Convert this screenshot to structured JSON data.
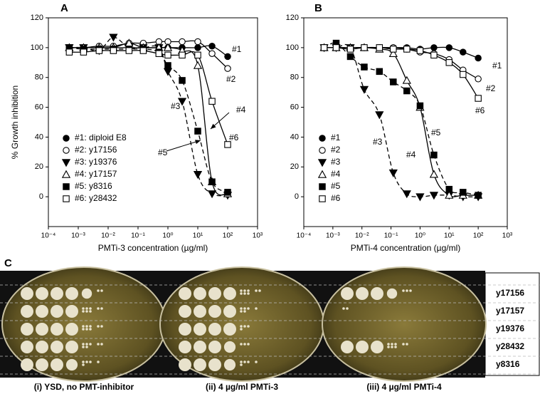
{
  "chart_data": [
    {
      "type": "scatter",
      "panel": "A",
      "xlabel": "PMTi-3 concentration (µg/ml)",
      "ylabel": "% Growth inhibition",
      "xscale": "log",
      "xlim": [
        0.0001,
        1000
      ],
      "ylim": [
        -20,
        120
      ],
      "xticks": [
        {
          "value": 0.0001,
          "label": "10⁻⁴"
        },
        {
          "value": 0.001,
          "label": "10⁻³"
        },
        {
          "value": 0.01,
          "label": "10⁻²"
        },
        {
          "value": 0.1,
          "label": "10⁻¹"
        },
        {
          "value": 1,
          "label": "10⁰"
        },
        {
          "value": 10,
          "label": "10¹"
        },
        {
          "value": 100,
          "label": "10²"
        },
        {
          "value": 1000,
          "label": "10³"
        }
      ],
      "yticks": [
        0,
        20,
        40,
        60,
        80,
        100,
        120
      ],
      "x": [
        0.0005,
        0.0015,
        0.005,
        0.015,
        0.05,
        0.15,
        0.5,
        1,
        3,
        10,
        30,
        100
      ],
      "series": [
        {
          "name": "#1: diploid E8",
          "marker": "circle",
          "line_style": "solid",
          "color": "#000000",
          "values": [
            100,
            100,
            100,
            100,
            100,
            100,
            100,
            100,
            100,
            100,
            101,
            94
          ]
        },
        {
          "name": "#2: y17156",
          "marker": "circle-open",
          "line_style": "solid",
          "color": "#000000",
          "values": [
            100,
            100,
            101,
            101,
            103,
            103,
            104,
            104,
            104,
            104,
            96,
            86
          ]
        },
        {
          "name": "#3: y19376",
          "marker": "triangle-down",
          "line_style": "dashed",
          "color": "#000000",
          "values": [
            100,
            100,
            98,
            107,
            100,
            100,
            100,
            84,
            64,
            15,
            2,
            1
          ]
        },
        {
          "name": "#4: y17157",
          "marker": "triangle-up-open",
          "line_style": "solid",
          "color": "#000000",
          "values": [
            100,
            100,
            100,
            100,
            103,
            100,
            100,
            100,
            98,
            88,
            10,
            2
          ]
        },
        {
          "name": "#5: y8316",
          "marker": "square",
          "line_style": "dashed",
          "color": "#000000",
          "values": [
            100,
            99,
            99,
            99,
            99,
            99,
            97,
            88,
            78,
            44,
            10,
            3
          ]
        },
        {
          "name": "#6: y28432",
          "marker": "square-open",
          "line_style": "solid",
          "color": "#000000",
          "values": [
            97,
            97,
            98,
            98,
            98,
            98,
            96,
            95,
            95,
            95,
            64,
            35
          ]
        }
      ],
      "annotations": [
        "#1",
        "#2",
        "#3",
        "#4",
        "#5",
        "#6"
      ]
    },
    {
      "type": "scatter",
      "panel": "B",
      "xlabel": "PMTi-4 concentration (µg/ml)",
      "xscale": "log",
      "xlim": [
        0.0001,
        1000
      ],
      "ylim": [
        -20,
        120
      ],
      "xticks": [
        {
          "value": 0.0001,
          "label": "10⁻⁴"
        },
        {
          "value": 0.001,
          "label": "10⁻³"
        },
        {
          "value": 0.01,
          "label": "10⁻²"
        },
        {
          "value": 0.1,
          "label": "10⁻¹"
        },
        {
          "value": 1,
          "label": "10⁰"
        },
        {
          "value": 10,
          "label": "10¹"
        },
        {
          "value": 100,
          "label": "10²"
        },
        {
          "value": 1000,
          "label": "10³"
        }
      ],
      "yticks": [
        0,
        20,
        40,
        60,
        80,
        100,
        120
      ],
      "x": [
        0.0005,
        0.0013,
        0.004,
        0.012,
        0.04,
        0.12,
        0.35,
        1,
        3,
        10,
        30,
        100
      ],
      "series": [
        {
          "name": "#1",
          "marker": "circle",
          "line_style": "solid",
          "color": "#000000",
          "values": [
            100,
            100,
            100,
            100,
            100,
            100,
            100,
            99,
            100,
            100,
            97,
            93
          ]
        },
        {
          "name": "#2",
          "marker": "circle-open",
          "line_style": "solid",
          "color": "#000000",
          "values": [
            100,
            100,
            100,
            100,
            100,
            100,
            99,
            97,
            96,
            92,
            85,
            79
          ]
        },
        {
          "name": "#3",
          "marker": "triangle-down",
          "line_style": "dashed",
          "color": "#000000",
          "values": [
            100,
            100,
            100,
            72,
            55,
            16,
            2,
            0,
            1,
            1,
            0,
            0
          ]
        },
        {
          "name": "#4",
          "marker": "triangle-up-open",
          "line_style": "solid",
          "color": "#000000",
          "values": [
            100,
            100,
            100,
            100,
            99,
            96,
            78,
            60,
            15,
            1,
            1,
            1
          ]
        },
        {
          "name": "#5",
          "marker": "square",
          "line_style": "dashed",
          "color": "#000000",
          "values": [
            100,
            103,
            94,
            87,
            84,
            77,
            71,
            61,
            28,
            5,
            3,
            1
          ]
        },
        {
          "name": "#6",
          "marker": "square-open",
          "line_style": "solid",
          "color": "#000000",
          "values": [
            100,
            100,
            99,
            100,
            100,
            99,
            99,
            98,
            95,
            90,
            82,
            66
          ]
        }
      ],
      "annotations": [
        "#1",
        "#2",
        "#3",
        "#4",
        "#5",
        "#6"
      ]
    }
  ],
  "panel_c": {
    "label": "C",
    "strains": [
      "y17156",
      "y17157",
      "y19376",
      "y28432",
      "y8316"
    ],
    "captions": [
      "(i) YSD, no PMT-inhibitor",
      "(ii) 4 µg/ml PMTi-3",
      "(iii) 4 µg/ml PMTi-4"
    ]
  }
}
